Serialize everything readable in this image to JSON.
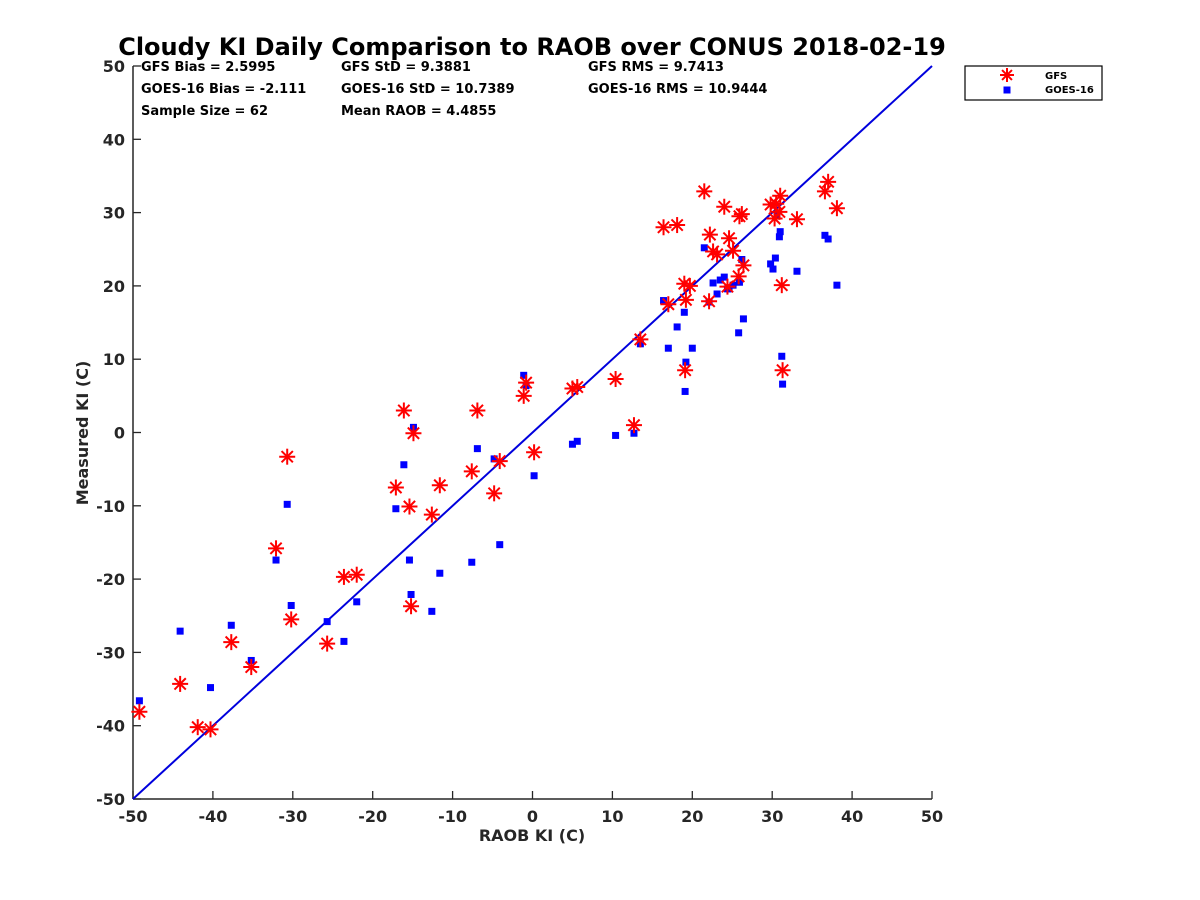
{
  "chart_data": {
    "type": "scatter",
    "title": "Cloudy KI Daily Comparison to RAOB over CONUS 2018-02-19",
    "xlabel": "RAOB KI (C)",
    "ylabel": "Measured KI (C)",
    "xlim": [
      -50,
      50
    ],
    "ylim": [
      -50,
      50
    ],
    "x_ticks": [
      "-50",
      "-40",
      "-30",
      "-20",
      "-10",
      "0",
      "10",
      "20",
      "30",
      "40",
      "50"
    ],
    "y_ticks": [
      "50",
      "40",
      "30",
      "20",
      "10",
      "0",
      "-10",
      "-20",
      "-30",
      "-40",
      "-50"
    ],
    "grid": false,
    "legend_position": "top-right outside",
    "reference_line": {
      "from": [
        -50,
        -50
      ],
      "to": [
        50,
        50
      ],
      "color": "#0000dd"
    },
    "stats": {
      "gfs_bias": "GFS Bias = 2.5995",
      "goes_bias": "GOES-16 Bias = -2.111",
      "sample_size": "Sample Size = 62",
      "gfs_std": "GFS StD = 9.3881",
      "goes_std": "GOES-16 StD = 10.7389",
      "mean_raob": "Mean RAOB = 4.4855",
      "gfs_rms": "GFS RMS = 9.7413",
      "goes_rms": "GOES-16 RMS = 10.9444"
    },
    "series": [
      {
        "name": "GFS",
        "marker": "asterisk",
        "color": "#ff0000",
        "points": [
          [
            -49.2,
            -38.1
          ],
          [
            -44.1,
            -34.3
          ],
          [
            -40.3,
            -40.5
          ],
          [
            -37.7,
            -28.6
          ],
          [
            -35.2,
            -32.0
          ],
          [
            -32.1,
            -15.8
          ],
          [
            -30.7,
            -3.3
          ],
          [
            -30.2,
            -25.5
          ],
          [
            -25.7,
            -28.8
          ],
          [
            -23.6,
            -19.7
          ],
          [
            -22.0,
            -19.4
          ],
          [
            -17.1,
            -7.5
          ],
          [
            -16.1,
            3.0
          ],
          [
            -15.4,
            -10.1
          ],
          [
            -15.2,
            -23.7
          ],
          [
            -14.9,
            -0.1
          ],
          [
            -12.6,
            -11.2
          ],
          [
            -11.6,
            -7.2
          ],
          [
            -7.6,
            -5.3
          ],
          [
            -6.9,
            3.0
          ],
          [
            -4.8,
            -8.3
          ],
          [
            -4.1,
            -3.9
          ],
          [
            -1.1,
            5.0
          ],
          [
            -0.8,
            6.8
          ],
          [
            0.2,
            -2.7
          ],
          [
            5.0,
            6.0
          ],
          [
            5.6,
            6.2
          ],
          [
            10.4,
            7.3
          ],
          [
            12.7,
            1.0
          ],
          [
            13.5,
            12.7
          ],
          [
            16.4,
            28.0
          ],
          [
            17.0,
            17.5
          ],
          [
            18.1,
            28.3
          ],
          [
            19.0,
            20.3
          ],
          [
            19.1,
            8.5
          ],
          [
            19.2,
            18.1
          ],
          [
            19.7,
            20.0
          ],
          [
            21.5,
            32.9
          ],
          [
            22.1,
            17.9
          ],
          [
            22.6,
            24.7
          ],
          [
            23.1,
            24.3
          ],
          [
            24.0,
            30.8
          ],
          [
            24.6,
            26.5
          ],
          [
            25.1,
            24.8
          ],
          [
            25.8,
            21.3
          ],
          [
            25.9,
            29.5
          ],
          [
            26.2,
            29.8
          ],
          [
            26.4,
            22.8
          ],
          [
            29.8,
            31.1
          ],
          [
            30.3,
            29.2
          ],
          [
            30.5,
            31.2
          ],
          [
            30.9,
            30.1
          ],
          [
            31.0,
            32.3
          ],
          [
            31.2,
            20.1
          ],
          [
            31.3,
            8.5
          ],
          [
            33.1,
            29.1
          ],
          [
            36.6,
            32.9
          ],
          [
            37.0,
            34.2
          ],
          [
            38.1,
            30.6
          ],
          [
            -41.9,
            -40.2
          ],
          [
            24.4,
            19.9
          ],
          [
            22.2,
            27.0
          ]
        ]
      },
      {
        "name": "GOES-16",
        "marker": "square",
        "color": "#0000ff",
        "points": [
          [
            -49.2,
            -36.6
          ],
          [
            -44.1,
            -27.1
          ],
          [
            -40.3,
            -34.8
          ],
          [
            -37.7,
            -26.3
          ],
          [
            -35.2,
            -31.1
          ],
          [
            -32.1,
            -17.4
          ],
          [
            -30.7,
            -9.8
          ],
          [
            -30.2,
            -23.6
          ],
          [
            -25.7,
            -25.8
          ],
          [
            -23.6,
            -28.5
          ],
          [
            -22.0,
            -23.1
          ],
          [
            -17.1,
            -10.4
          ],
          [
            -16.1,
            -4.4
          ],
          [
            -15.4,
            -17.4
          ],
          [
            -15.2,
            -22.1
          ],
          [
            -14.9,
            0.7
          ],
          [
            -12.6,
            -24.4
          ],
          [
            -11.6,
            -19.2
          ],
          [
            -7.6,
            -17.7
          ],
          [
            -6.9,
            -2.2
          ],
          [
            -4.8,
            -3.6
          ],
          [
            -4.1,
            -15.3
          ],
          [
            -1.1,
            7.8
          ],
          [
            -0.8,
            6.4
          ],
          [
            0.2,
            -5.9
          ],
          [
            5.0,
            -1.6
          ],
          [
            5.6,
            -1.2
          ],
          [
            10.4,
            -0.4
          ],
          [
            12.7,
            -0.1
          ],
          [
            13.5,
            12.1
          ],
          [
            16.4,
            18.0
          ],
          [
            17.0,
            11.5
          ],
          [
            18.1,
            14.4
          ],
          [
            19.0,
            16.4
          ],
          [
            19.1,
            5.6
          ],
          [
            19.2,
            9.6
          ],
          [
            20.0,
            11.5
          ],
          [
            21.5,
            25.2
          ],
          [
            22.1,
            17.8
          ],
          [
            22.6,
            20.4
          ],
          [
            23.1,
            18.9
          ],
          [
            23.5,
            20.8
          ],
          [
            24.0,
            21.2
          ],
          [
            24.6,
            19.6
          ],
          [
            25.1,
            20.1
          ],
          [
            25.8,
            13.6
          ],
          [
            25.9,
            20.5
          ],
          [
            26.2,
            23.6
          ],
          [
            26.4,
            15.5
          ],
          [
            29.8,
            23.0
          ],
          [
            30.1,
            22.3
          ],
          [
            30.4,
            23.8
          ],
          [
            30.9,
            26.7
          ],
          [
            31.0,
            27.4
          ],
          [
            31.2,
            10.4
          ],
          [
            31.3,
            6.6
          ],
          [
            33.1,
            22.0
          ],
          [
            36.6,
            26.9
          ],
          [
            37.0,
            26.4
          ],
          [
            38.1,
            20.1
          ],
          [
            30.6,
            29.6
          ],
          [
            24.4,
            19.6
          ]
        ]
      }
    ]
  }
}
